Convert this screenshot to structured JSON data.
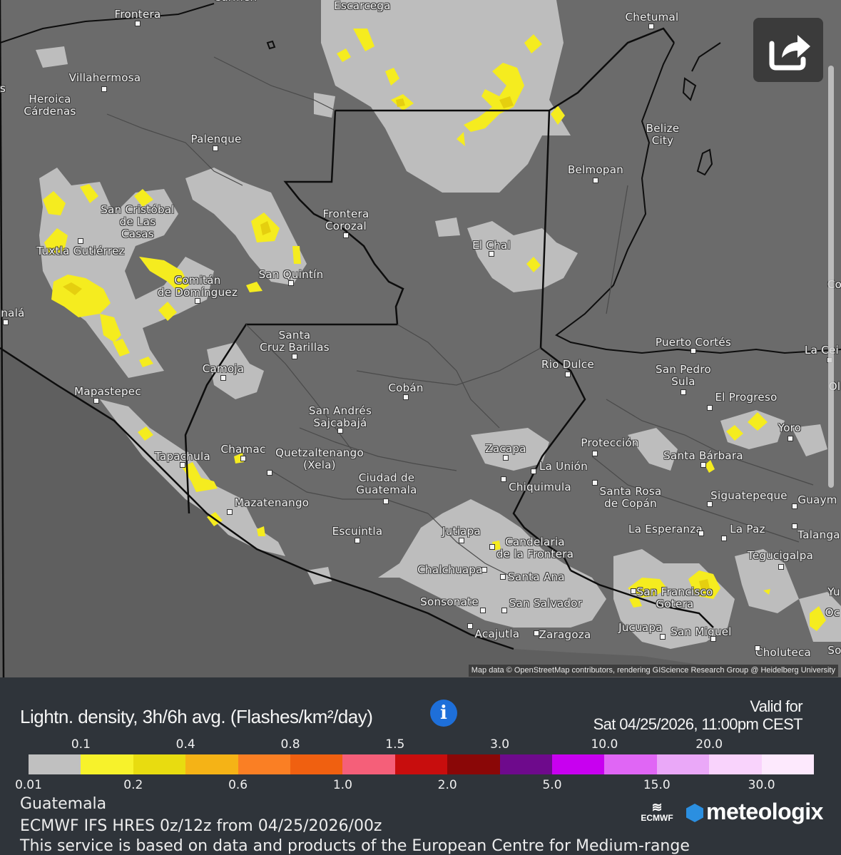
{
  "map": {
    "attribution": "Map data © OpenStreetMap contributors, rendering GIScience Research Group @ Heidelberg University",
    "cities": [
      {
        "id": "frontera",
        "label": "Frontera"
      },
      {
        "id": "carmen",
        "label": "Carmen"
      },
      {
        "id": "escarcega",
        "label": "Escarcega"
      },
      {
        "id": "chetumal",
        "label": "Chetumal"
      },
      {
        "id": "villahermosa",
        "label": "Villahermosa"
      },
      {
        "id": "heroica-cardenas",
        "label": "Heroica\nCárdenas"
      },
      {
        "id": "palenque",
        "label": "Palenque"
      },
      {
        "id": "belize-city",
        "label": "Belize\nCity"
      },
      {
        "id": "belmopan",
        "label": "Belmopan"
      },
      {
        "id": "san-cristobal",
        "label": "San Cristóbal\nde Las\nCasas"
      },
      {
        "id": "frontera-corozal",
        "label": "Frontera\nCorozal"
      },
      {
        "id": "tuxtla",
        "label": "Tuxtla Gutiérrez"
      },
      {
        "id": "el-chal",
        "label": "El Chal"
      },
      {
        "id": "comitan",
        "label": "Comitán\nde Domínguez"
      },
      {
        "id": "san-quintin",
        "label": "San Quintín"
      },
      {
        "id": "tonala",
        "label": "nalá"
      },
      {
        "id": "santa-cruz-barillas",
        "label": "Santa\nCruz Barillas"
      },
      {
        "id": "puerto-cortes",
        "label": "Puerto Cortés"
      },
      {
        "id": "la-ceiba",
        "label": "La Cei"
      },
      {
        "id": "rio-dulce",
        "label": "Rio Dulce"
      },
      {
        "id": "san-pedro-sula",
        "label": "San Pedro\nSula"
      },
      {
        "id": "camoja",
        "label": "Camoja"
      },
      {
        "id": "mapastepec",
        "label": "Mapastepec"
      },
      {
        "id": "coban",
        "label": "Cobán"
      },
      {
        "id": "el-progreso",
        "label": "El Progreso"
      },
      {
        "id": "san-andres-sajcabaja",
        "label": "San Andrés\nSajcabajá"
      },
      {
        "id": "yoro",
        "label": "Yoro"
      },
      {
        "id": "tapachula",
        "label": "Tapachula"
      },
      {
        "id": "chamac",
        "label": "Chamac"
      },
      {
        "id": "quetzaltenango",
        "label": "Quetzaltenango\n(Xela)"
      },
      {
        "id": "zacapa",
        "label": "Zacapa"
      },
      {
        "id": "proteccion",
        "label": "Protección"
      },
      {
        "id": "santa-barbara",
        "label": "Santa Bárbara"
      },
      {
        "id": "la-union",
        "label": "La Unión"
      },
      {
        "id": "ciudad-de-guatemala",
        "label": "Ciudad de\nGuatemala"
      },
      {
        "id": "chiquimula",
        "label": "Chiquimula"
      },
      {
        "id": "santa-rosa-de-copan",
        "label": "Santa Rosa\nde Copán"
      },
      {
        "id": "siguatepeque",
        "label": "Siguatepeque"
      },
      {
        "id": "guaymaca",
        "label": "Guaym"
      },
      {
        "id": "mazatenango",
        "label": "Mazatenango"
      },
      {
        "id": "escuintla",
        "label": "Escuintla"
      },
      {
        "id": "jutiapa",
        "label": "Jutiapa"
      },
      {
        "id": "la-esperanza",
        "label": "La Esperanza"
      },
      {
        "id": "la-paz",
        "label": "La Paz"
      },
      {
        "id": "talanga",
        "label": "Talanga"
      },
      {
        "id": "candelaria",
        "label": "Candelaria\nde la Frontera"
      },
      {
        "id": "tegucigalpa",
        "label": "Tegucigalpa"
      },
      {
        "id": "chalchuapa",
        "label": "Chalchuapa"
      },
      {
        "id": "santa-ana",
        "label": "Santa Ana"
      },
      {
        "id": "san-francisco-gotera",
        "label": "San Francisco\nGotera"
      },
      {
        "id": "sonsonate",
        "label": "Sonsonate"
      },
      {
        "id": "san-salvador",
        "label": "San Salvador"
      },
      {
        "id": "acajutla",
        "label": "Acajutla"
      },
      {
        "id": "zaragoza",
        "label": "Zaragoza"
      },
      {
        "id": "jucuapa",
        "label": "Jucuapa"
      },
      {
        "id": "san-miguel",
        "label": "San Miguel"
      },
      {
        "id": "choluteca",
        "label": "Choluteca"
      },
      {
        "id": "coatzacoalcos-edge",
        "label": "Co"
      },
      {
        "id": "olanchito-edge",
        "label": "Ol"
      },
      {
        "id": "ocotal-edge",
        "label": "Oc"
      },
      {
        "id": "yuscaran-edge",
        "label": "Yu"
      },
      {
        "id": "edge-s",
        "label": "s"
      },
      {
        "id": "edge-so",
        "label": "So"
      }
    ]
  },
  "panel": {
    "title": "Lightn. density, 3h/6h avg. (Flashes/km²/day)",
    "info_icon": "info-icon",
    "valid_label": "Valid for",
    "valid_time": "Sat 04/25/2026, 11:00pm CEST",
    "legend": {
      "colors": [
        "#c0c0c0",
        "#f7f22b",
        "#e8dc10",
        "#f5b316",
        "#fa7f24",
        "#f06010",
        "#f55f79",
        "#c80d0d",
        "#8a0707",
        "#6e0a8c",
        "#c800f0",
        "#e066f5",
        "#eaa8f8",
        "#f9d3fc",
        "#fde9fd"
      ],
      "top_labels": [
        "0.1",
        "0.4",
        "0.8",
        "1.5",
        "3.0",
        "10.0",
        "20.0"
      ],
      "bottom_labels": [
        "0.01",
        "0.2",
        "0.6",
        "1.0",
        "2.0",
        "5.0",
        "15.0",
        "30.0"
      ]
    },
    "region": "Guatemala",
    "model": "ECMWF IFS HRES 0z/12z from 04/25/2026/00z",
    "disclaimer": "This service is based on data and products of the European Centre for Medium-range",
    "ecmwf_logo_text": "ECMWF",
    "brand": "meteologix"
  }
}
